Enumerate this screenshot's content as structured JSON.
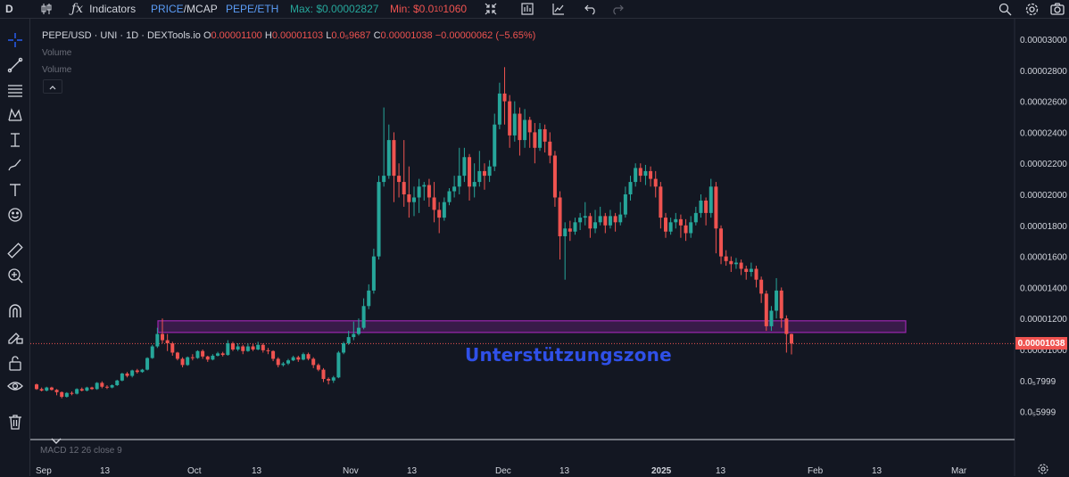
{
  "toolbar": {
    "symbol_short": "D",
    "indicators_label": "Indicators",
    "price_label": "PRICE",
    "slash": "/",
    "mcap_label": "MCAP",
    "pair_label": "PEPE/ETH",
    "max_label": "Max: $0.00002827",
    "min_prefix": "Min: $0.0",
    "min_sub": "10",
    "min_suffix": "1060"
  },
  "legend": {
    "title": "PEPE/USD · UNI · 1D · DEXTools.io",
    "open_label": "O",
    "open_value": "0.00001100",
    "high_label": "H",
    "high_value": "0.00001103",
    "low_label": "L",
    "low_value": "0.0₅9687",
    "close_label": "C",
    "close_value": "0.00001038",
    "change": "−0.00000062 (−5.65%)",
    "volume1": "Volume",
    "volume2": "Volume"
  },
  "macd_label": "MACD 12 26 close 9",
  "annotation": {
    "zone_text": "Unterstützungszone",
    "zone_color": "#9c27b0"
  },
  "current_price": "0.00001038",
  "colors": {
    "up": "#26a69a",
    "down": "#ef5350",
    "background": "#131722",
    "zone_text": "#2f50e8"
  },
  "chart_data": {
    "type": "candlestick",
    "price_axis": {
      "labels": [
        "0.00003000",
        "0.00002800",
        "0.00002600",
        "0.00002400",
        "0.00002200",
        "0.00002000",
        "0.00001800",
        "0.00001600",
        "0.00001400",
        "0.00001200",
        "0.00001000",
        "0.0₅7999",
        "0.0₅5999"
      ],
      "values": [
        3e-05,
        2.8e-05,
        2.6e-05,
        2.4e-05,
        2.2e-05,
        2e-05,
        1.8e-05,
        1.6e-05,
        1.4e-05,
        1.2e-05,
        1e-05,
        8e-06,
        6e-06
      ]
    },
    "time_axis": {
      "labels": [
        "Sep",
        "13",
        "Oct",
        "13",
        "Nov",
        "13",
        "Dec",
        "13",
        "2025",
        "13",
        "Feb",
        "13",
        "Mar"
      ],
      "bold": [
        false,
        false,
        false,
        false,
        false,
        false,
        false,
        false,
        true,
        false,
        false,
        false,
        false
      ]
    },
    "support_zone": {
      "low": 1.11e-05,
      "high": 1.185e-05
    },
    "candles": [
      [
        7.75e-06,
        7.45e-06,
        7.8e-06,
        7.4e-06
      ],
      [
        7.45e-06,
        7.35e-06,
        7.55e-06,
        7.3e-06
      ],
      [
        7.35e-06,
        7.55e-06,
        7.6e-06,
        7.3e-06
      ],
      [
        7.55e-06,
        7.4e-06,
        7.6e-06,
        7.35e-06
      ],
      [
        7.4e-06,
        7.25e-06,
        7.45e-06,
        7.05e-06
      ],
      [
        7.25e-06,
        6.95e-06,
        7.3e-06,
        6.85e-06
      ],
      [
        6.95e-06,
        7.2e-06,
        7.25e-06,
        6.9e-06
      ],
      [
        7.2e-06,
        7.15e-06,
        7.3e-06,
        7.05e-06
      ],
      [
        7.15e-06,
        7.45e-06,
        7.5e-06,
        7.1e-06
      ],
      [
        7.45e-06,
        7.35e-06,
        7.55e-06,
        7.3e-06
      ],
      [
        7.35e-06,
        7.55e-06,
        7.6e-06,
        7.3e-06
      ],
      [
        7.55e-06,
        7.45e-06,
        7.6e-06,
        7.4e-06
      ],
      [
        7.45e-06,
        7.85e-06,
        7.9e-06,
        7.4e-06
      ],
      [
        7.85e-06,
        7.6e-06,
        7.95e-06,
        7.5e-06
      ],
      [
        7.6e-06,
        7.55e-06,
        7.7e-06,
        7.45e-06
      ],
      [
        7.55e-06,
        7.7e-06,
        7.75e-06,
        7.5e-06
      ],
      [
        7.7e-06,
        8e-06,
        8.05e-06,
        7.65e-06
      ],
      [
        8e-06,
        8.45e-06,
        8.5e-06,
        7.95e-06
      ],
      [
        8.45e-06,
        8.3e-06,
        8.55e-06,
        8.2e-06
      ],
      [
        8.3e-06,
        8.65e-06,
        8.7e-06,
        8.2e-06
      ],
      [
        8.65e-06,
        8.55e-06,
        8.75e-06,
        8.45e-06
      ],
      [
        8.55e-06,
        8.7e-06,
        8.75e-06,
        8.5e-06
      ],
      [
        8.7e-06,
        9.45e-06,
        9.5e-06,
        8.65e-06
      ],
      [
        9.45e-06,
        1.02e-05,
        1.03e-05,
        9.4e-06
      ],
      [
        1.02e-05,
        1.1e-05,
        1.14e-05,
        1.01e-05
      ],
      [
        1.1e-05,
        1.06e-05,
        1.2e-05,
        1.04e-05
      ],
      [
        1.06e-05,
        1.04e-05,
        1.1e-05,
        9.9e-06
      ],
      [
        1.04e-05,
        9.8e-06,
        1.05e-05,
        9.6e-06
      ],
      [
        9.8e-06,
        9.4e-06,
        9.85e-06,
        9.3e-06
      ],
      [
        9.4e-06,
        9e-06,
        9.5e-06,
        8.85e-06
      ],
      [
        9e-06,
        9.5e-06,
        9.55e-06,
        8.95e-06
      ],
      [
        9.5e-06,
        9.45e-06,
        9.7e-06,
        9.3e-06
      ],
      [
        9.45e-06,
        9.9e-06,
        9.95e-06,
        9.4e-06
      ],
      [
        9.9e-06,
        9.55e-06,
        1e-05,
        9.4e-06
      ],
      [
        9.55e-06,
        9.35e-06,
        9.6e-06,
        9.2e-06
      ],
      [
        9.35e-06,
        9.6e-06,
        9.7e-06,
        9.3e-06
      ],
      [
        9.6e-06,
        9.75e-06,
        9.85e-06,
        9.55e-06
      ],
      [
        9.75e-06,
        9.65e-06,
        9.85e-06,
        9.55e-06
      ],
      [
        9.65e-06,
        1.04e-05,
        1.06e-05,
        9.6e-06
      ],
      [
        1.04e-05,
        1e-05,
        1.05e-05,
        9.9e-06
      ],
      [
        1e-05,
        1.02e-05,
        1.04e-05,
        9.9e-06
      ],
      [
        1.02e-05,
        9.9e-06,
        1.03e-05,
        9.7e-06
      ],
      [
        9.9e-06,
        1.02e-05,
        1.04e-05,
        9.85e-06
      ],
      [
        1.02e-05,
        1e-05,
        1.04e-05,
        9.9e-06
      ],
      [
        1e-05,
        1.03e-05,
        1.05e-05,
        9.95e-06
      ],
      [
        1.03e-05,
        9.95e-06,
        1.04e-05,
        9.8e-06
      ],
      [
        9.95e-06,
        9.9e-06,
        1.01e-05,
        9.7e-06
      ],
      [
        9.9e-06,
        9.4e-06,
        9.95e-06,
        9.25e-06
      ],
      [
        9.4e-06,
        9e-06,
        9.5e-06,
        8.85e-06
      ],
      [
        9e-06,
        9.1e-06,
        9.2e-06,
        8.9e-06
      ],
      [
        9.1e-06,
        9.3e-06,
        9.4e-06,
        9e-06
      ],
      [
        9.3e-06,
        9.5e-06,
        9.6e-06,
        9.25e-06
      ],
      [
        9.5e-06,
        9.35e-06,
        9.6e-06,
        9.2e-06
      ],
      [
        9.35e-06,
        9.7e-06,
        9.8e-06,
        9.3e-06
      ],
      [
        9.7e-06,
        9.4e-06,
        9.8e-06,
        9.3e-06
      ],
      [
        9.4e-06,
        9e-06,
        9.5e-06,
        8.8e-06
      ],
      [
        9e-06,
        8.7e-06,
        9.1e-06,
        8.6e-06
      ],
      [
        8.7e-06,
        8.1e-06,
        8.8e-06,
        7.9e-06
      ],
      [
        8.1e-06,
        8e-06,
        8.2e-06,
        7.75e-06
      ],
      [
        8e-06,
        8.2e-06,
        8.3e-06,
        7.85e-06
      ],
      [
        8.2e-06,
        9.8e-06,
        9.9e-06,
        8.15e-06
      ],
      [
        9.8e-06,
        1.04e-05,
        1.05e-05,
        9.7e-06
      ],
      [
        1.04e-05,
        1.08e-05,
        1.12e-05,
        1.03e-05
      ],
      [
        1.08e-05,
        1.1e-05,
        1.18e-05,
        1.06e-05
      ],
      [
        1.1e-05,
        1.14e-05,
        1.2e-05,
        1.09e-05
      ],
      [
        1.14e-05,
        1.28e-05,
        1.33e-05,
        1.13e-05
      ],
      [
        1.28e-05,
        1.38e-05,
        1.42e-05,
        1.26e-05
      ],
      [
        1.38e-05,
        1.6e-05,
        1.65e-05,
        1.36e-05
      ],
      [
        1.6e-05,
        2.08e-05,
        2.12e-05,
        1.58e-05
      ],
      [
        2.08e-05,
        2.12e-05,
        2.56e-05,
        2.05e-05
      ],
      [
        2.12e-05,
        2.35e-05,
        2.45e-05,
        2.1e-05
      ],
      [
        2.35e-05,
        2.12e-05,
        2.4e-05,
        1.95e-05
      ],
      [
        2.12e-05,
        2.08e-05,
        2.2e-05,
        1.98e-05
      ],
      [
        2.08e-05,
        2e-05,
        2.35e-05,
        1.92e-05
      ],
      [
        2e-05,
        1.95e-05,
        2.18e-05,
        1.85e-05
      ],
      [
        1.95e-05,
        1.98e-05,
        2.05e-05,
        1.86e-05
      ],
      [
        1.98e-05,
        2.05e-05,
        2.1e-05,
        1.88e-05
      ],
      [
        2.05e-05,
        2.06e-05,
        2.08e-05,
        1.96e-05
      ],
      [
        2.06e-05,
        1.98e-05,
        2.1e-05,
        1.92e-05
      ],
      [
        1.98e-05,
        1.9e-05,
        2.08e-05,
        1.82e-05
      ],
      [
        1.9e-05,
        1.85e-05,
        1.95e-05,
        1.75e-05
      ],
      [
        1.85e-05,
        1.95e-05,
        1.98e-05,
        1.83e-05
      ],
      [
        1.95e-05,
        2.02e-05,
        2.04e-05,
        1.93e-05
      ],
      [
        2.02e-05,
        2.05e-05,
        2.12e-05,
        1.98e-05
      ],
      [
        2.05e-05,
        2.12e-05,
        2.3e-05,
        2e-05
      ],
      [
        2.12e-05,
        2.24e-05,
        2.3e-05,
        2.08e-05
      ],
      [
        2.24e-05,
        2.05e-05,
        2.26e-05,
        1.96e-05
      ],
      [
        2.05e-05,
        2.08e-05,
        2.2e-05,
        1.98e-05
      ],
      [
        2.08e-05,
        2.15e-05,
        2.28e-05,
        2.05e-05
      ],
      [
        2.15e-05,
        2.12e-05,
        2.2e-05,
        2.03e-05
      ],
      [
        2.12e-05,
        2.18e-05,
        2.22e-05,
        2.08e-05
      ],
      [
        2.18e-05,
        2.45e-05,
        2.52e-05,
        2.15e-05
      ],
      [
        2.45e-05,
        2.65e-05,
        2.72e-05,
        2.42e-05
      ],
      [
        2.65e-05,
        2.6e-05,
        2.82e-05,
        2.45e-05
      ],
      [
        2.6e-05,
        2.38e-05,
        2.64e-05,
        2.3e-05
      ],
      [
        2.38e-05,
        2.52e-05,
        2.6e-05,
        2.34e-05
      ],
      [
        2.52e-05,
        2.35e-05,
        2.56e-05,
        2.25e-05
      ],
      [
        2.35e-05,
        2.48e-05,
        2.55e-05,
        2.3e-05
      ],
      [
        2.48e-05,
        2.4e-05,
        2.5e-05,
        2.3e-05
      ],
      [
        2.4e-05,
        2.3e-05,
        2.46e-05,
        2.2e-05
      ],
      [
        2.3e-05,
        2.42e-05,
        2.46e-05,
        2.28e-05
      ],
      [
        2.42e-05,
        2.34e-05,
        2.45e-05,
        2.27e-05
      ],
      [
        2.34e-05,
        2.25e-05,
        2.4e-05,
        2.2e-05
      ],
      [
        2.25e-05,
        1.98e-05,
        2.28e-05,
        1.92e-05
      ],
      [
        1.98e-05,
        1.73e-05,
        2.02e-05,
        1.58e-05
      ],
      [
        1.73e-05,
        1.78e-05,
        1.82e-05,
        1.45e-05
      ],
      [
        1.78e-05,
        1.76e-05,
        1.83e-05,
        1.7e-05
      ],
      [
        1.76e-05,
        1.82e-05,
        1.85e-05,
        1.74e-05
      ],
      [
        1.82e-05,
        1.85e-05,
        1.88e-05,
        1.77e-05
      ],
      [
        1.85e-05,
        1.86e-05,
        1.95e-05,
        1.8e-05
      ],
      [
        1.86e-05,
        1.78e-05,
        1.88e-05,
        1.72e-05
      ],
      [
        1.78e-05,
        1.82e-05,
        1.9e-05,
        1.75e-05
      ],
      [
        1.82e-05,
        1.86e-05,
        1.92e-05,
        1.8e-05
      ],
      [
        1.86e-05,
        1.8e-05,
        1.88e-05,
        1.75e-05
      ],
      [
        1.8e-05,
        1.86e-05,
        1.9e-05,
        1.78e-05
      ],
      [
        1.86e-05,
        1.82e-05,
        1.88e-05,
        1.76e-05
      ],
      [
        1.82e-05,
        1.87e-05,
        1.95e-05,
        1.8e-05
      ],
      [
        1.87e-05,
        2e-05,
        2.05e-05,
        1.85e-05
      ],
      [
        2e-05,
        2.08e-05,
        2.12e-05,
        1.96e-05
      ],
      [
        2.08e-05,
        2.17e-05,
        2.2e-05,
        2.05e-05
      ],
      [
        2.17e-05,
        2.12e-05,
        2.2e-05,
        2.08e-05
      ],
      [
        2.12e-05,
        2.15e-05,
        2.19e-05,
        2.06e-05
      ],
      [
        2.15e-05,
        2.1e-05,
        2.18e-05,
        2.05e-05
      ],
      [
        2.1e-05,
        2.05e-05,
        2.15e-05,
        1.98e-05
      ],
      [
        2.05e-05,
        1.85e-05,
        2.08e-05,
        1.78e-05
      ],
      [
        1.85e-05,
        1.76e-05,
        1.88e-05,
        1.72e-05
      ],
      [
        1.76e-05,
        1.82e-05,
        1.85e-05,
        1.74e-05
      ],
      [
        1.82e-05,
        1.84e-05,
        1.88e-05,
        1.78e-05
      ],
      [
        1.84e-05,
        1.8e-05,
        1.87e-05,
        1.72e-05
      ],
      [
        1.8e-05,
        1.75e-05,
        1.84e-05,
        1.7e-05
      ],
      [
        1.75e-05,
        1.82e-05,
        1.86e-05,
        1.72e-05
      ],
      [
        1.82e-05,
        1.88e-05,
        1.92e-05,
        1.8e-05
      ],
      [
        1.88e-05,
        1.96e-05,
        2e-05,
        1.85e-05
      ],
      [
        1.96e-05,
        1.88e-05,
        1.98e-05,
        1.8e-05
      ],
      [
        1.88e-05,
        2.05e-05,
        2.1e-05,
        1.85e-05
      ],
      [
        2.05e-05,
        1.78e-05,
        2.08e-05,
        1.62e-05
      ],
      [
        1.78e-05,
        1.6e-05,
        1.8e-05,
        1.55e-05
      ],
      [
        1.6e-05,
        1.57e-05,
        1.64e-05,
        1.54e-05
      ],
      [
        1.57e-05,
        1.55e-05,
        1.6e-05,
        1.5e-05
      ],
      [
        1.55e-05,
        1.56e-05,
        1.59e-05,
        1.52e-05
      ],
      [
        1.56e-05,
        1.52e-05,
        1.58e-05,
        1.48e-05
      ],
      [
        1.52e-05,
        1.5e-05,
        1.54e-05,
        1.45e-05
      ],
      [
        1.5e-05,
        1.52e-05,
        1.56e-05,
        1.47e-05
      ],
      [
        1.52e-05,
        1.45e-05,
        1.54e-05,
        1.4e-05
      ],
      [
        1.45e-05,
        1.36e-05,
        1.47e-05,
        1.3e-05
      ],
      [
        1.36e-05,
        1.15e-05,
        1.38e-05,
        1.12e-05
      ],
      [
        1.15e-05,
        1.25e-05,
        1.28e-05,
        1.12e-05
      ],
      [
        1.25e-05,
        1.38e-05,
        1.46e-05,
        1.2e-05
      ],
      [
        1.38e-05,
        1.2e-05,
        1.4e-05,
        1.14e-05
      ],
      [
        1.2e-05,
        1.1e-05,
        1.22e-05,
        9.8e-06
      ],
      [
        1.1e-05,
        1.038e-05,
        1.103e-05,
        9.687e-06
      ]
    ]
  }
}
